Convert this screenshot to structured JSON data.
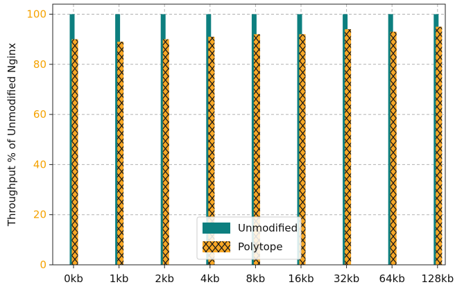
{
  "chart_data": {
    "type": "bar",
    "title": "",
    "xlabel": "",
    "ylabel": "Throughput % of Unmodified Nginx",
    "categories": [
      "0kb",
      "1kb",
      "2kb",
      "4kb",
      "8kb",
      "16kb",
      "32kb",
      "64kb",
      "128kb"
    ],
    "series": [
      {
        "name": "Unmodified",
        "color": "#0d7f7f",
        "values": [
          100,
          100,
          100,
          100,
          100,
          100,
          100,
          100,
          100
        ]
      },
      {
        "name": "Polytope",
        "color": "#f9a825",
        "hatch": "x",
        "values": [
          90,
          89,
          90,
          91,
          92,
          92,
          94,
          93,
          95
        ]
      }
    ],
    "ylim": [
      0,
      104
    ],
    "yticks": [
      0,
      20,
      40,
      60,
      80,
      100
    ],
    "grid": true,
    "legend_position": "bottom-center"
  }
}
